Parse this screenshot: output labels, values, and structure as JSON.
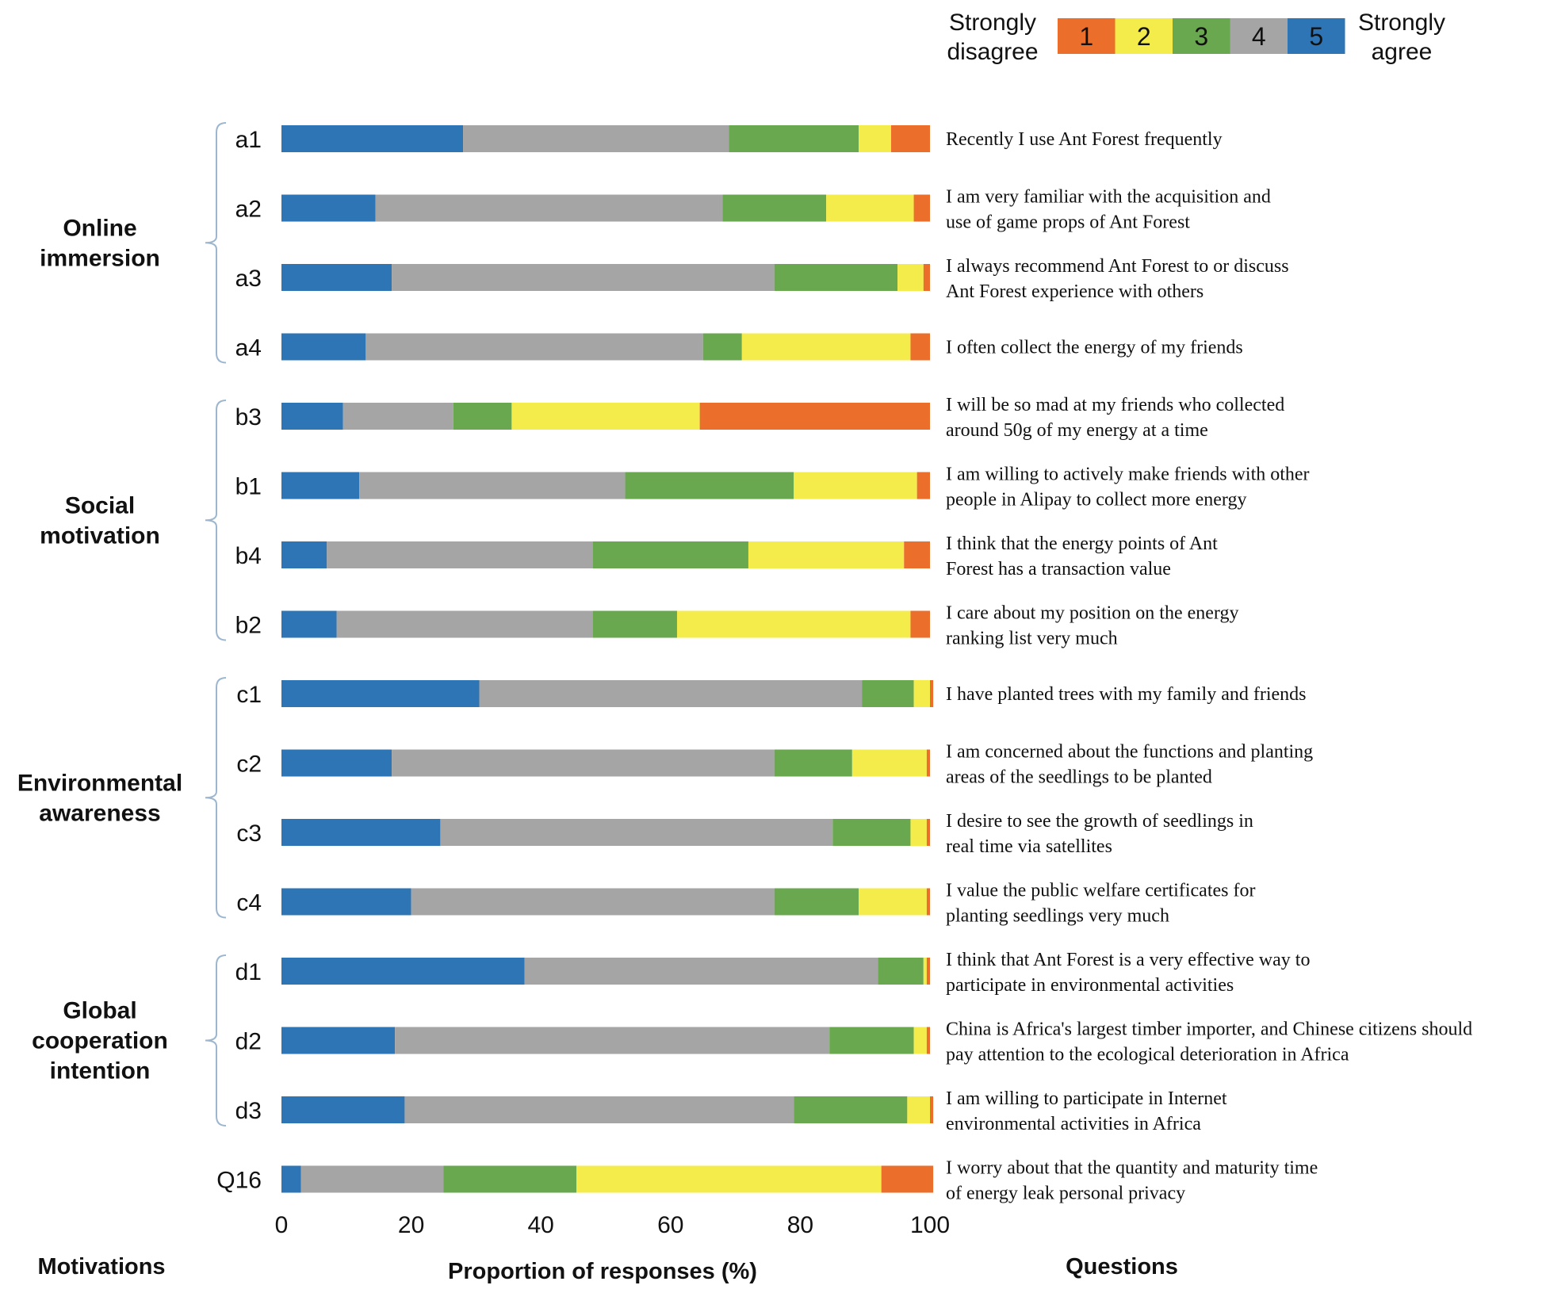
{
  "chart_data": {
    "type": "bar",
    "orientation": "horizontal",
    "stacked": true,
    "xlabel": "Proportion of responses (%)",
    "xlim": [
      0,
      100
    ],
    "xticks": [
      "0",
      "20",
      "40",
      "60",
      "80",
      "100"
    ],
    "left_heading": "Motivations",
    "right_heading": "Questions",
    "legend": {
      "position": "top-right",
      "left_label": [
        "Strongly",
        "disagree"
      ],
      "right_label": [
        "Strongly",
        "agree"
      ],
      "levels": [
        "1",
        "2",
        "3",
        "4",
        "5"
      ]
    },
    "series": [
      {
        "name": "5",
        "color": "#2E75B6"
      },
      {
        "name": "4",
        "color": "#A5A5A5"
      },
      {
        "name": "3",
        "color": "#6AA84F"
      },
      {
        "name": "2",
        "color": "#F4EC4A"
      },
      {
        "name": "1",
        "color": "#EB6E2A"
      }
    ],
    "groups": [
      {
        "name": [
          "Online",
          "immersion"
        ],
        "rows": [
          0,
          3
        ]
      },
      {
        "name": [
          "Social",
          "motivation"
        ],
        "rows": [
          4,
          7
        ]
      },
      {
        "name": [
          "Environmental",
          "awareness"
        ],
        "rows": [
          8,
          11
        ]
      },
      {
        "name": [
          "Global",
          "cooperation",
          "intention"
        ],
        "rows": [
          12,
          14
        ]
      }
    ],
    "rows": [
      {
        "id": "a1",
        "question": [
          "Recently I use Ant Forest frequently"
        ],
        "values": [
          28,
          41,
          20,
          5,
          6
        ]
      },
      {
        "id": "a2",
        "question": [
          "I am very familiar with the acquisition and",
          "use of game props of Ant Forest"
        ],
        "values": [
          14.5,
          53.5,
          16,
          13.5,
          2.5
        ]
      },
      {
        "id": "a3",
        "question": [
          "I always recommend Ant Forest to or discuss",
          "Ant Forest experience with others"
        ],
        "values": [
          17,
          59,
          19,
          4,
          1
        ]
      },
      {
        "id": "a4",
        "question": [
          "I often collect the energy of my friends"
        ],
        "values": [
          13,
          52,
          6,
          26,
          3
        ]
      },
      {
        "id": "b3",
        "question": [
          "I will be so mad at my friends who collected",
          "around 50g of my energy at a time"
        ],
        "values": [
          9.5,
          17,
          9,
          29,
          35.5
        ]
      },
      {
        "id": "b1",
        "question": [
          "I am willing to actively make friends with other",
          "people in Alipay to collect more energy"
        ],
        "values": [
          12,
          41,
          26,
          19,
          2
        ]
      },
      {
        "id": "b4",
        "question": [
          "I think that the energy points of Ant",
          "Forest has a transaction value"
        ],
        "values": [
          7,
          41,
          24,
          24,
          4
        ]
      },
      {
        "id": "b2",
        "question": [
          "I care about my position on the energy",
          "ranking list very much"
        ],
        "values": [
          8.5,
          39.5,
          13,
          36,
          3
        ]
      },
      {
        "id": "c1",
        "question": [
          "I have planted trees with my family and friends"
        ],
        "values": [
          30.5,
          59,
          8,
          2.5,
          0.5
        ]
      },
      {
        "id": "c2",
        "question": [
          "I am concerned about the functions and planting",
          "areas of the seedlings to be planted"
        ],
        "values": [
          17,
          59,
          12,
          11.5,
          0.5
        ]
      },
      {
        "id": "c3",
        "question": [
          "I desire to see the growth of seedlings in",
          "real time via satellites"
        ],
        "values": [
          24.5,
          60.5,
          12,
          2.5,
          0.5
        ]
      },
      {
        "id": "c4",
        "question": [
          "I value the public welfare certificates for",
          "planting seedlings very much"
        ],
        "values": [
          20,
          56,
          13,
          10.5,
          0.5
        ]
      },
      {
        "id": "d1",
        "question": [
          "I think that Ant Forest is a very effective way to",
          "participate in environmental activities"
        ],
        "values": [
          37.5,
          54.5,
          7,
          0.5,
          0.5
        ]
      },
      {
        "id": "d2",
        "question": [
          "China is Africa's largest timber importer, and Chinese citizens should",
          "pay attention to the ecological deterioration in Africa"
        ],
        "values": [
          17.5,
          67,
          13,
          2,
          0.5
        ]
      },
      {
        "id": "d3",
        "question": [
          "I am willing to participate in Internet",
          "environmental activities in Africa"
        ],
        "values": [
          19,
          60,
          17.5,
          3.5,
          0.5
        ]
      },
      {
        "id": "Q16",
        "question": [
          "I worry about that the quantity and maturity time",
          "of energy leak personal privacy"
        ],
        "values": [
          3,
          22,
          20.5,
          47,
          8
        ]
      }
    ]
  }
}
